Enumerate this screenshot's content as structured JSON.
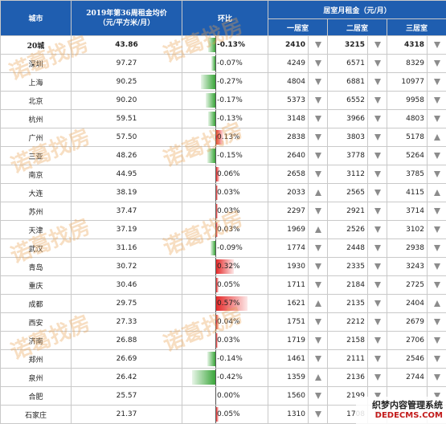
{
  "header": {
    "city": "城市",
    "avg_price": "2019年第36周租金均价",
    "avg_unit": "（元/平方米/月）",
    "change": "环比",
    "rent_group": "居室月租金（元/月）",
    "one_bed": "一居室",
    "two_bed": "二居室",
    "three_bed": "三居室"
  },
  "rows": [
    {
      "city": "20城",
      "price": "43.86",
      "change": "-0.13%",
      "change_value": -0.13,
      "r1": "2410",
      "a1": "down",
      "r2": "3215",
      "a2": "down",
      "r3": "4318",
      "a3": "down"
    },
    {
      "city": "深圳",
      "price": "97.27",
      "change": "-0.07%",
      "change_value": -0.07,
      "r1": "4249",
      "a1": "down",
      "r2": "6571",
      "a2": "down",
      "r3": "8329",
      "a3": "down"
    },
    {
      "city": "上海",
      "price": "90.25",
      "change": "-0.27%",
      "change_value": -0.27,
      "r1": "4804",
      "a1": "down",
      "r2": "6881",
      "a2": "down",
      "r3": "10977",
      "a3": "down"
    },
    {
      "city": "北京",
      "price": "90.20",
      "change": "-0.17%",
      "change_value": -0.17,
      "r1": "5373",
      "a1": "down",
      "r2": "6552",
      "a2": "down",
      "r3": "9958",
      "a3": "down"
    },
    {
      "city": "杭州",
      "price": "59.51",
      "change": "-0.13%",
      "change_value": -0.13,
      "r1": "3148",
      "a1": "down",
      "r2": "3966",
      "a2": "down",
      "r3": "4803",
      "a3": "down"
    },
    {
      "city": "广州",
      "price": "57.50",
      "change": "0.13%",
      "change_value": 0.13,
      "r1": "2838",
      "a1": "down",
      "r2": "3803",
      "a2": "down",
      "r3": "5178",
      "a3": "up"
    },
    {
      "city": "三亚",
      "price": "48.26",
      "change": "-0.15%",
      "change_value": -0.15,
      "r1": "2640",
      "a1": "down",
      "r2": "3778",
      "a2": "down",
      "r3": "5264",
      "a3": "down"
    },
    {
      "city": "南京",
      "price": "44.95",
      "change": "0.06%",
      "change_value": 0.06,
      "r1": "2658",
      "a1": "down",
      "r2": "3112",
      "a2": "down",
      "r3": "3785",
      "a3": "down"
    },
    {
      "city": "大连",
      "price": "38.19",
      "change": "0.03%",
      "change_value": 0.03,
      "r1": "2033",
      "a1": "up",
      "r2": "2565",
      "a2": "down",
      "r3": "4115",
      "a3": "up"
    },
    {
      "city": "苏州",
      "price": "37.47",
      "change": "0.03%",
      "change_value": 0.03,
      "r1": "2297",
      "a1": "down",
      "r2": "2921",
      "a2": "down",
      "r3": "3714",
      "a3": "down"
    },
    {
      "city": "天津",
      "price": "37.19",
      "change": "0.03%",
      "change_value": 0.03,
      "r1": "1969",
      "a1": "up",
      "r2": "2526",
      "a2": "down",
      "r3": "3102",
      "a3": "down"
    },
    {
      "city": "武汉",
      "price": "31.16",
      "change": "-0.09%",
      "change_value": -0.09,
      "r1": "1774",
      "a1": "down",
      "r2": "2448",
      "a2": "down",
      "r3": "2938",
      "a3": "down"
    },
    {
      "city": "青岛",
      "price": "30.72",
      "change": "0.32%",
      "change_value": 0.32,
      "r1": "1930",
      "a1": "down",
      "r2": "2335",
      "a2": "down",
      "r3": "3243",
      "a3": "down"
    },
    {
      "city": "重庆",
      "price": "30.46",
      "change": "0.05%",
      "change_value": 0.05,
      "r1": "1711",
      "a1": "down",
      "r2": "2184",
      "a2": "down",
      "r3": "2725",
      "a3": "down"
    },
    {
      "city": "成都",
      "price": "29.75",
      "change": "0.57%",
      "change_value": 0.57,
      "r1": "1621",
      "a1": "up",
      "r2": "2135",
      "a2": "down",
      "r3": "2404",
      "a3": "up"
    },
    {
      "city": "西安",
      "price": "27.33",
      "change": "0.04%",
      "change_value": 0.04,
      "r1": "1751",
      "a1": "down",
      "r2": "2212",
      "a2": "down",
      "r3": "2679",
      "a3": "down"
    },
    {
      "city": "济南",
      "price": "26.88",
      "change": "0.03%",
      "change_value": 0.03,
      "r1": "1719",
      "a1": "down",
      "r2": "2158",
      "a2": "down",
      "r3": "2706",
      "a3": "down"
    },
    {
      "city": "郑州",
      "price": "26.69",
      "change": "-0.14%",
      "change_value": -0.14,
      "r1": "1461",
      "a1": "down",
      "r2": "2111",
      "a2": "down",
      "r3": "2546",
      "a3": "down"
    },
    {
      "city": "泉州",
      "price": "26.42",
      "change": "-0.42%",
      "change_value": -0.42,
      "r1": "1359",
      "a1": "up",
      "r2": "2136",
      "a2": "down",
      "r3": "2744",
      "a3": "down"
    },
    {
      "city": "合肥",
      "price": "25.57",
      "change": "0.00%",
      "change_value": 0.0,
      "r1": "1560",
      "a1": "down",
      "r2": "2199",
      "a2": "down",
      "r3": "",
      "a3": "down"
    },
    {
      "city": "石家庄",
      "price": "21.37",
      "change": "0.05%",
      "change_value": 0.05,
      "r1": "1310",
      "a1": "down",
      "r2": "1708",
      "a2": "down",
      "r3": "",
      "a3": "down"
    }
  ],
  "watermark": "诺葛找房",
  "corner_logo": {
    "line1": "织梦内容管理系统",
    "line2": "DEDECMS.COM"
  },
  "colors": {
    "header_bg": "#1f5eb0",
    "negative_bar": "#3aa63a",
    "positive_bar": "#e52a2a"
  }
}
